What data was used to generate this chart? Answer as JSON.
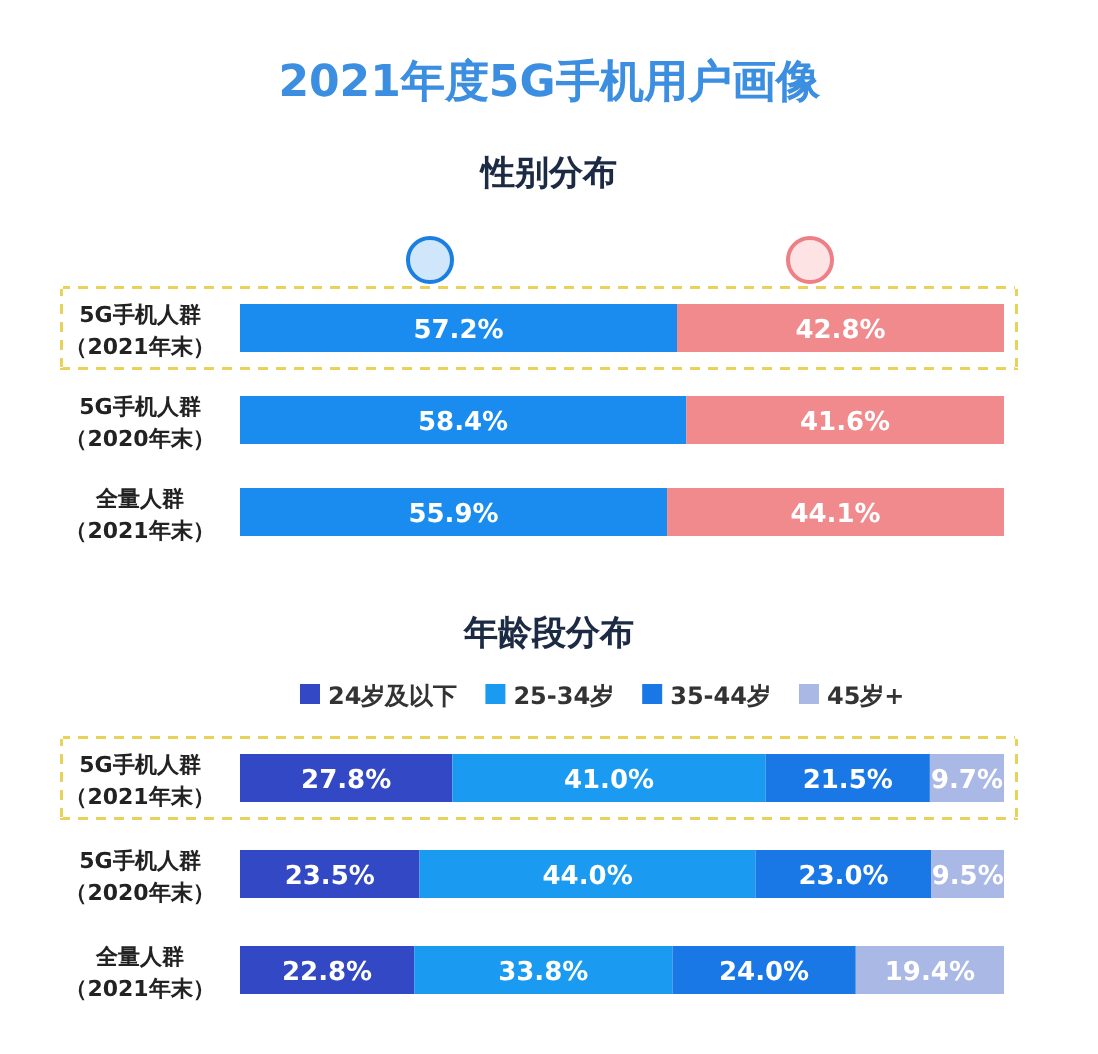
{
  "chart_data": [
    {
      "type": "bar",
      "orientation": "horizontal",
      "stacked": true,
      "title": "2021年度5G手机用户画像",
      "subtitle": "性别分布",
      "categories": [
        "5G手机人群（2021年末）",
        "5G手机人群（2020年末）",
        "全量人群（2021年末）"
      ],
      "xlim": [
        0,
        100
      ],
      "data_labels": true,
      "legend": false,
      "series": [
        {
          "color": "#1a8cf0",
          "values": [
            57.2,
            58.4,
            55.9
          ],
          "value_labels": [
            "57.2%",
            "58.4%",
            "55.9%"
          ]
        },
        {
          "color": "#f08a8c",
          "values": [
            42.8,
            41.6,
            44.1
          ],
          "value_labels": [
            "42.8%",
            "41.6%",
            "44.1%"
          ]
        }
      ]
    },
    {
      "type": "bar",
      "orientation": "horizontal",
      "stacked": true,
      "title": "年龄段分布",
      "categories": [
        "5G手机人群（2021年末）",
        "5G手机人群（2020年末）",
        "全量人群（2021年末）"
      ],
      "xlim": [
        0,
        100
      ],
      "data_labels": true,
      "legend": "top",
      "series": [
        {
          "name": "24岁及以下",
          "color": "#3348c4",
          "values": [
            27.8,
            23.5,
            22.8
          ],
          "value_labels": [
            "27.8%",
            "23.5%",
            "22.8%"
          ]
        },
        {
          "name": "25-34岁",
          "color": "#1a9af0",
          "values": [
            41.0,
            44.0,
            33.8
          ],
          "value_labels": [
            "41.0%",
            "44.0%",
            "33.8%"
          ]
        },
        {
          "name": "35-44岁",
          "color": "#1a78e6",
          "values": [
            21.5,
            23.0,
            24.0
          ],
          "value_labels": [
            "21.5%",
            "23.0%",
            "24.0%"
          ]
        },
        {
          "name": "45岁+",
          "color": "#aab8e6",
          "values": [
            9.7,
            9.5,
            19.4
          ],
          "value_labels": [
            "9.7%",
            "9.5%",
            "19.4%"
          ]
        }
      ]
    }
  ]
}
